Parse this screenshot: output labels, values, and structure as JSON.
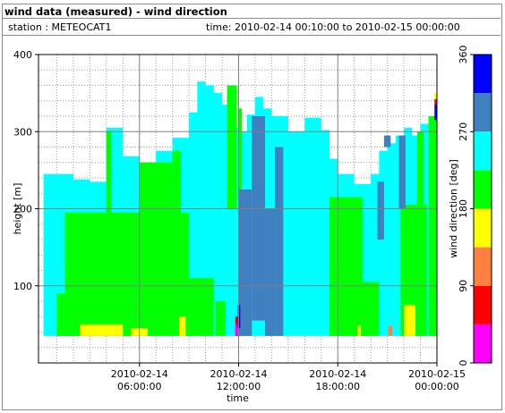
{
  "header": {
    "title": "wind data (measured) - wind direction",
    "station_text": "station : METEOCAT1",
    "time_text": "time: 2010-02-14 00:10:00 to 2010-02-15 00:00:00"
  },
  "chart_data": {
    "type": "heatmap",
    "title": "wind data (measured) - wind direction",
    "xlabel": "time",
    "ylabel": "height [m]",
    "x_range": [
      "2010-02-14 00:10:00",
      "2010-02-15 00:00:00"
    ],
    "ylim": [
      0,
      400
    ],
    "y_ticks": [
      100,
      200,
      300,
      400
    ],
    "x_ticks": [
      {
        "line1": "2010-02-14",
        "line2": "06:00:00",
        "hour": 6
      },
      {
        "line1": "2010-02-14",
        "line2": "12:00:00",
        "hour": 12
      },
      {
        "line1": "2010-02-14",
        "line2": "18:00:00",
        "hour": 18
      },
      {
        "line1": "2010-02-15",
        "line2": "00:00:00",
        "hour": 24
      }
    ],
    "grid": true,
    "colorbar": {
      "label": "wind direction [deg]",
      "range": [
        0,
        360
      ],
      "ticks": [
        0,
        90,
        180,
        270,
        360
      ],
      "bins": [
        {
          "from": 0,
          "to": 45,
          "color": "#ff00ff"
        },
        {
          "from": 45,
          "to": 90,
          "color": "#ff0000"
        },
        {
          "from": 90,
          "to": 135,
          "color": "#ff8040"
        },
        {
          "from": 135,
          "to": 180,
          "color": "#ffff00"
        },
        {
          "from": 180,
          "to": 225,
          "color": "#00ff00"
        },
        {
          "from": 225,
          "to": 270,
          "color": "#00ffff"
        },
        {
          "from": 270,
          "to": 315,
          "color": "#4080c0"
        },
        {
          "from": 315,
          "to": 360,
          "color": "#0000ff"
        }
      ]
    },
    "column_tops_m": [
      {
        "hour": 0.2,
        "top": 245
      },
      {
        "hour": 1.0,
        "top": 245
      },
      {
        "hour": 2.0,
        "top": 238
      },
      {
        "hour": 3.0,
        "top": 235
      },
      {
        "hour": 4.0,
        "top": 305
      },
      {
        "hour": 5.0,
        "top": 268
      },
      {
        "hour": 6.0,
        "top": 252
      },
      {
        "hour": 7.0,
        "top": 275
      },
      {
        "hour": 8.0,
        "top": 292
      },
      {
        "hour": 9.0,
        "top": 325
      },
      {
        "hour": 9.5,
        "top": 365
      },
      {
        "hour": 10.0,
        "top": 360
      },
      {
        "hour": 10.5,
        "top": 350
      },
      {
        "hour": 11.0,
        "top": 335
      },
      {
        "hour": 11.5,
        "top": 305
      },
      {
        "hour": 12.0,
        "top": 300
      },
      {
        "hour": 12.5,
        "top": 322
      },
      {
        "hour": 13.0,
        "top": 345
      },
      {
        "hour": 13.5,
        "top": 330
      },
      {
        "hour": 14.0,
        "top": 320
      },
      {
        "hour": 15.0,
        "top": 300
      },
      {
        "hour": 16.0,
        "top": 318
      },
      {
        "hour": 17.0,
        "top": 302
      },
      {
        "hour": 17.5,
        "top": 265
      },
      {
        "hour": 18.0,
        "top": 245
      },
      {
        "hour": 19.0,
        "top": 232
      },
      {
        "hour": 20.0,
        "top": 245
      },
      {
        "hour": 20.5,
        "top": 275
      },
      {
        "hour": 21.0,
        "top": 285
      },
      {
        "hour": 21.5,
        "top": 295
      },
      {
        "hour": 22.0,
        "top": 305
      },
      {
        "hour": 22.5,
        "top": 295
      },
      {
        "hour": 23.0,
        "top": 310
      },
      {
        "hour": 23.5,
        "top": 320
      },
      {
        "hour": 24.0,
        "top": 350
      }
    ],
    "regions": [
      {
        "color": "#00ff00",
        "hour_from": 1.5,
        "hour_to": 9.0,
        "height_from": 35,
        "height_to": 195
      },
      {
        "color": "#00ff00",
        "hour_from": 1.0,
        "hour_to": 1.8,
        "height_from": 35,
        "height_to": 90
      },
      {
        "color": "#00ff00",
        "hour_from": 9.0,
        "hour_to": 10.5,
        "height_from": 35,
        "height_to": 110
      },
      {
        "color": "#00ff00",
        "hour_from": 10.6,
        "hour_to": 11.2,
        "height_from": 35,
        "height_to": 80
      },
      {
        "color": "#00ff00",
        "hour_from": 11.3,
        "hour_to": 11.9,
        "height_from": 200,
        "height_to": 360
      },
      {
        "color": "#00ff00",
        "hour_from": 6.0,
        "hour_to": 8.0,
        "height_from": 195,
        "height_to": 260
      },
      {
        "color": "#00ff00",
        "hour_from": 4.0,
        "hour_to": 4.3,
        "height_from": 195,
        "height_to": 300
      },
      {
        "color": "#00ff00",
        "hour_from": 8.0,
        "hour_to": 8.5,
        "height_from": 195,
        "height_to": 275
      },
      {
        "color": "#00ff00",
        "hour_from": 17.5,
        "hour_to": 19.5,
        "height_from": 35,
        "height_to": 215
      },
      {
        "color": "#00ff00",
        "hour_from": 19.3,
        "hour_to": 20.5,
        "height_from": 35,
        "height_to": 105
      },
      {
        "color": "#00ff00",
        "hour_from": 21.8,
        "hour_to": 23.4,
        "height_from": 35,
        "height_to": 205
      },
      {
        "color": "#00ff00",
        "hour_from": 22.8,
        "hour_to": 23.2,
        "height_from": 205,
        "height_to": 300
      },
      {
        "color": "#00ff00",
        "hour_from": 23.5,
        "hour_to": 24.0,
        "height_from": 35,
        "height_to": 320
      },
      {
        "color": "#00ff00",
        "hour_from": 12.0,
        "hour_to": 12.2,
        "height_from": 35,
        "height_to": 330
      },
      {
        "color": "#4080c0",
        "hour_from": 12.0,
        "hour_to": 12.8,
        "height_from": 35,
        "height_to": 225
      },
      {
        "color": "#4080c0",
        "hour_from": 12.8,
        "hour_to": 13.6,
        "height_from": 55,
        "height_to": 320
      },
      {
        "color": "#4080c0",
        "hour_from": 13.6,
        "hour_to": 14.2,
        "height_from": 35,
        "height_to": 200
      },
      {
        "color": "#4080c0",
        "hour_from": 14.2,
        "hour_to": 14.7,
        "height_from": 35,
        "height_to": 280
      },
      {
        "color": "#4080c0",
        "hour_from": 20.4,
        "hour_to": 20.8,
        "height_from": 160,
        "height_to": 235
      },
      {
        "color": "#4080c0",
        "hour_from": 21.7,
        "hour_to": 22.1,
        "height_from": 200,
        "height_to": 295
      },
      {
        "color": "#4080c0",
        "hour_from": 20.8,
        "hour_to": 21.2,
        "height_from": 280,
        "height_to": 295
      },
      {
        "color": "#ffff00",
        "hour_from": 2.4,
        "hour_to": 5.0,
        "height_from": 35,
        "height_to": 50
      },
      {
        "color": "#ffff00",
        "hour_from": 5.5,
        "hour_to": 6.5,
        "height_from": 35,
        "height_to": 45
      },
      {
        "color": "#ffff00",
        "hour_from": 8.4,
        "hour_to": 8.8,
        "height_from": 35,
        "height_to": 60
      },
      {
        "color": "#ffff00",
        "hour_from": 22.0,
        "hour_to": 22.7,
        "height_from": 35,
        "height_to": 75
      },
      {
        "color": "#ffff00",
        "hour_from": 19.2,
        "hour_to": 19.4,
        "height_from": 35,
        "height_to": 48
      },
      {
        "color": "#ffff00",
        "hour_from": 23.85,
        "hour_to": 24.0,
        "height_from": 340,
        "height_to": 350
      },
      {
        "color": "#ff8040",
        "hour_from": 21.05,
        "hour_to": 21.3,
        "height_from": 35,
        "height_to": 48
      },
      {
        "color": "#ff0000",
        "hour_from": 11.8,
        "hour_to": 12.0,
        "height_from": 35,
        "height_to": 60
      },
      {
        "color": "#ff00ff",
        "hour_from": 11.8,
        "hour_to": 12.0,
        "height_from": 35,
        "height_to": 50
      },
      {
        "color": "#0000ff",
        "hour_from": 11.95,
        "hour_to": 12.1,
        "height_from": 45,
        "height_to": 75
      },
      {
        "color": "#0000ff",
        "hour_from": 23.85,
        "hour_to": 24.0,
        "height_from": 315,
        "height_to": 335
      },
      {
        "color": "#ff0000",
        "hour_from": 23.85,
        "hour_to": 24.0,
        "height_from": 335,
        "height_to": 342
      }
    ]
  }
}
